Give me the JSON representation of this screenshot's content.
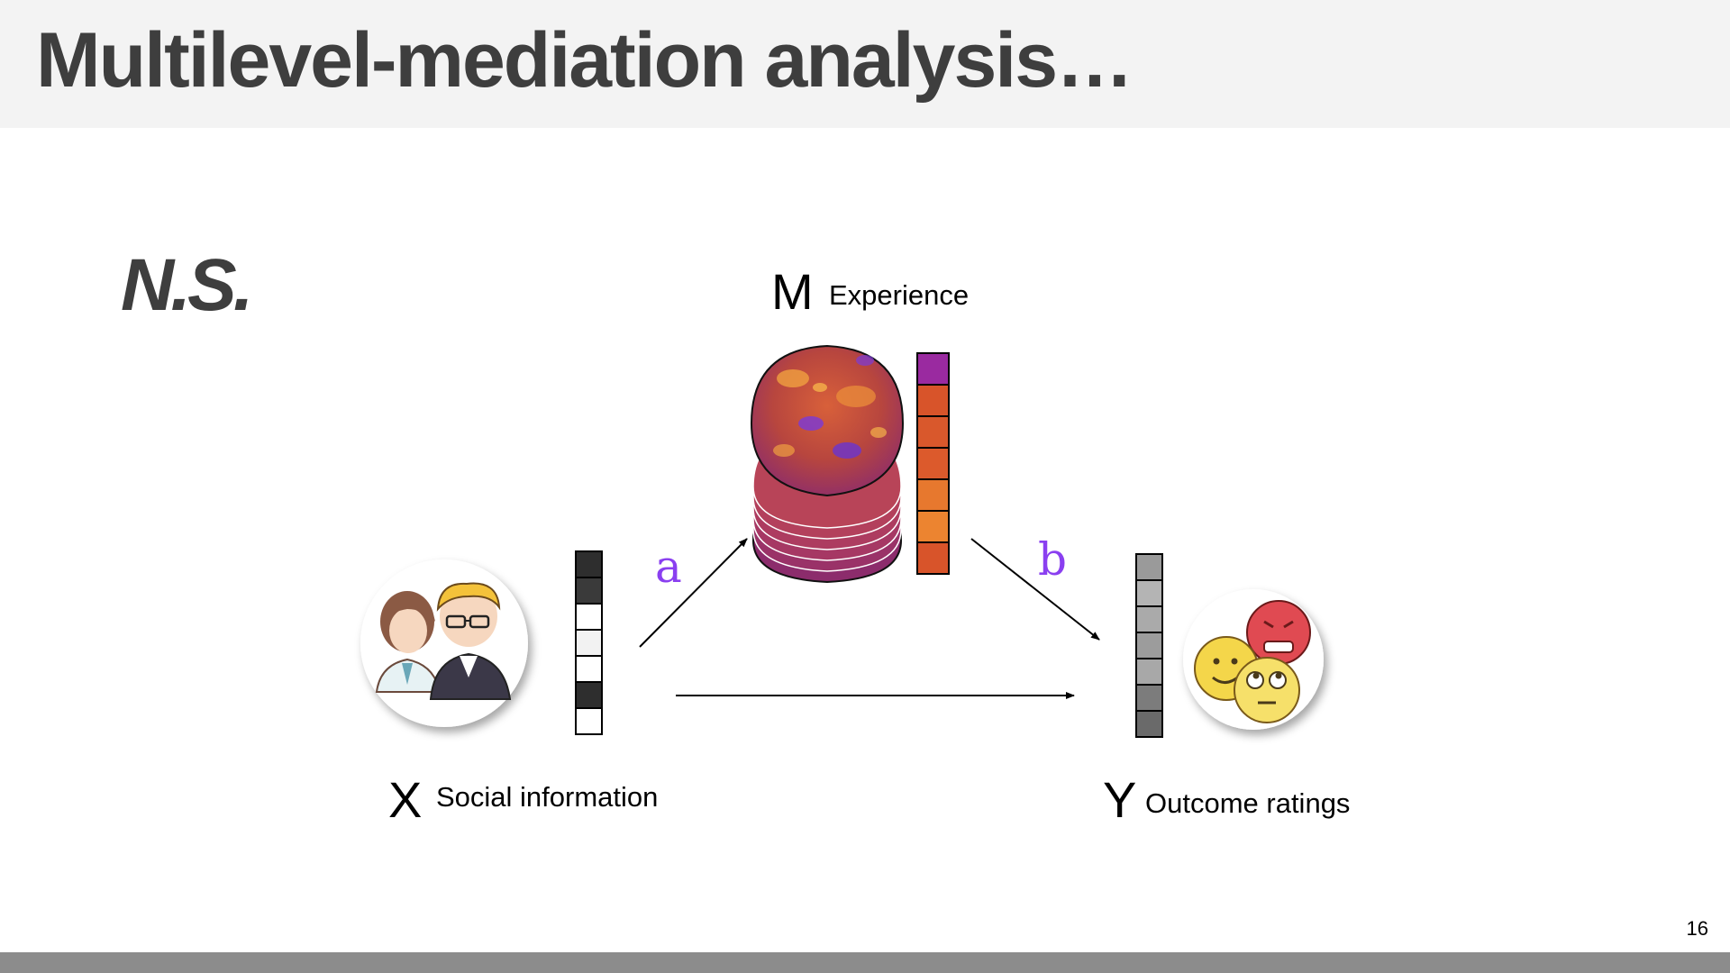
{
  "slide": {
    "title": "Multilevel-mediation analysis…",
    "result_label": "N.S.",
    "page_number": "16"
  },
  "diagram": {
    "mediator": {
      "letter": "M",
      "label": "Experience"
    },
    "predictor": {
      "letter": "X",
      "label": "Social information"
    },
    "outcome": {
      "letter": "Y",
      "label": "Outcome ratings"
    },
    "paths": {
      "a": "a",
      "b": "b"
    }
  },
  "colors": {
    "title_text": "#3e3e3e",
    "title_bar": "#f3f3f3",
    "footer_bar": "#8c8c8c",
    "path_label": "#8a3ff0"
  },
  "icons": {
    "predictor": "two-people-illustration-icon",
    "mediator": "brain-slices-icon",
    "outcome": "emoji-faces-icon"
  }
}
